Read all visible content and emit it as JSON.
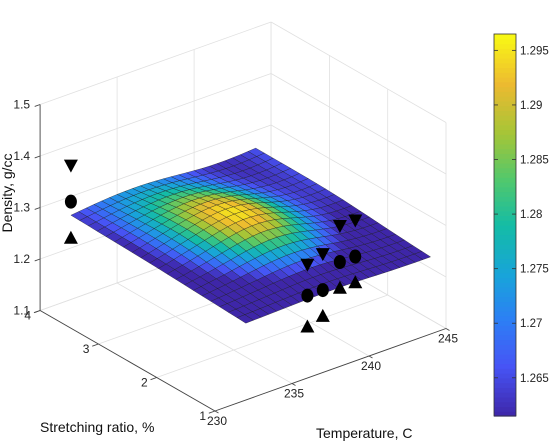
{
  "chart_data": {
    "type": "surface",
    "zlabel": "Density, g/cc",
    "xlabel": "Temperature, C",
    "ylabel": "Stretching ratio, %",
    "x_ticks": [
      "230",
      "235",
      "240",
      "245"
    ],
    "y_ticks": [
      "1",
      "2",
      "3",
      "4"
    ],
    "z_ticks": [
      "1.1",
      "1.2",
      "1.3",
      "1.4",
      "1.5"
    ],
    "xlim": [
      230,
      245
    ],
    "ylim": [
      1,
      4
    ],
    "zlim": [
      1.1,
      1.5
    ],
    "grid": true,
    "colormap": "parula",
    "colorbar": {
      "ticks": [
        "1.265",
        "1.27",
        "1.275",
        "1.28",
        "1.285",
        "1.29",
        "1.295"
      ],
      "range": [
        1.2615,
        1.2965
      ]
    },
    "surface_domain": {
      "x": [
        232,
        244
      ],
      "y": [
        1,
        4
      ]
    },
    "surface_grid": {
      "nx": 25,
      "ny": 21
    },
    "markers": [
      {
        "shape": "circle",
        "x": 232,
        "y": 4,
        "z": 1.29
      },
      {
        "shape": "triangle-down",
        "x": 232,
        "y": 4,
        "z": 1.36
      },
      {
        "shape": "triangle-up",
        "x": 232,
        "y": 4,
        "z": 1.22
      },
      {
        "shape": "circle",
        "x": 236,
        "y": 1,
        "z": 1.26
      },
      {
        "shape": "triangle-down",
        "x": 236,
        "y": 1,
        "z": 1.32
      },
      {
        "shape": "triangle-up",
        "x": 236,
        "y": 1,
        "z": 1.2
      },
      {
        "shape": "circle",
        "x": 237,
        "y": 1,
        "z": 1.26
      },
      {
        "shape": "triangle-down",
        "x": 237,
        "y": 1,
        "z": 1.33
      },
      {
        "shape": "triangle-up",
        "x": 237,
        "y": 1,
        "z": 1.21
      },
      {
        "shape": "circle",
        "x": 240,
        "y": 1.5,
        "z": 1.25
      },
      {
        "shape": "triangle-down",
        "x": 240,
        "y": 1.5,
        "z": 1.32
      },
      {
        "shape": "triangle-up",
        "x": 240,
        "y": 1.5,
        "z": 1.2
      },
      {
        "shape": "circle",
        "x": 241,
        "y": 1.5,
        "z": 1.25
      },
      {
        "shape": "triangle-down",
        "x": 241,
        "y": 1.5,
        "z": 1.32
      },
      {
        "shape": "triangle-up",
        "x": 241,
        "y": 1.5,
        "z": 1.2
      }
    ]
  }
}
